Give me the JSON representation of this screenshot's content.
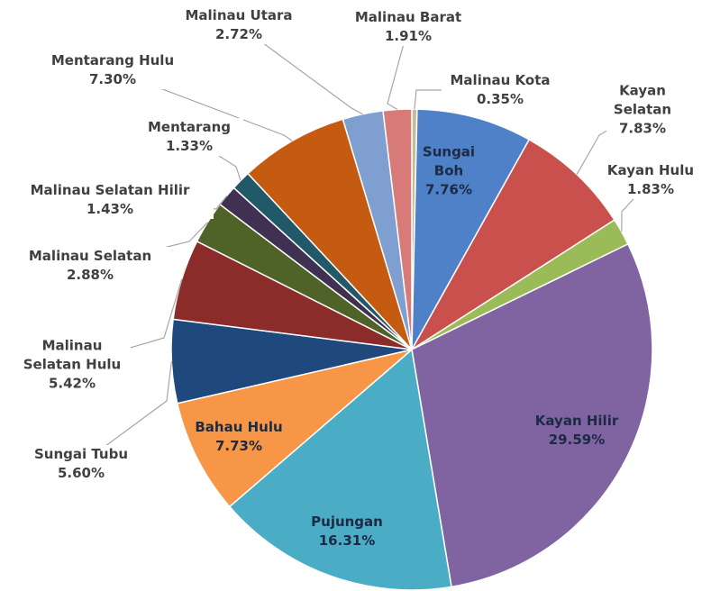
{
  "chart_data": {
    "type": "pie",
    "categories": [
      "Malinau Kota",
      "Sungai Boh",
      "Kayan Selatan",
      "Kayan Hulu",
      "Kayan Hilir",
      "Pujungan",
      "Bahau Hulu",
      "Sungai Tubu",
      "Malinau Selatan Hulu",
      "Malinau Selatan",
      "Malinau Selatan Hilir",
      "Mentarang",
      "Mentarang Hulu",
      "Malinau Utara",
      "Malinau Barat"
    ],
    "values": [
      0.35,
      7.76,
      7.83,
      1.83,
      29.59,
      16.31,
      7.73,
      5.6,
      5.42,
      2.88,
      1.43,
      1.33,
      7.3,
      2.72,
      1.91
    ],
    "value_labels": [
      "0.35%",
      "7.76%",
      "7.83%",
      "1.83%",
      "29.59%",
      "16.31%",
      "7.73%",
      "5.60%",
      "5.42%",
      "2.88%",
      "1.43%",
      "1.33%",
      "7.30%",
      "2.72%",
      "1.91%"
    ],
    "colors": [
      "#c4bd97",
      "#4f81c8",
      "#c9504c",
      "#9bbb59",
      "#8064a2",
      "#4bacc6",
      "#f79646",
      "#1f497d",
      "#8b2c2a",
      "#4f6228",
      "#403152",
      "#215968",
      "#c55a11",
      "#7f9fd0",
      "#d87a78"
    ]
  }
}
